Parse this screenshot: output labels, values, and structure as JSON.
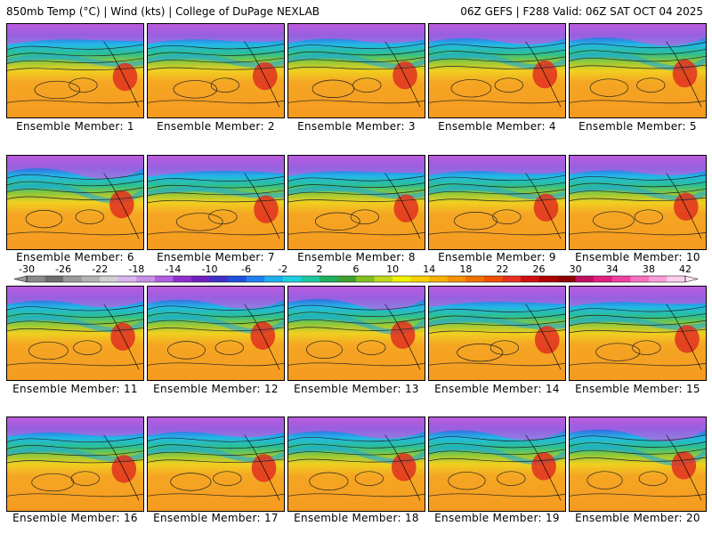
{
  "header": {
    "left": "850mb Temp (°C) | Wind (kts) | College of DuPage NEXLAB",
    "right": "06Z GEFS | F288 Valid: 06Z SAT OCT 04 2025"
  },
  "panels": [
    {
      "label": "Ensemble Member: 1"
    },
    {
      "label": "Ensemble Member: 2"
    },
    {
      "label": "Ensemble Member: 3"
    },
    {
      "label": "Ensemble Member: 4"
    },
    {
      "label": "Ensemble Member: 5"
    },
    {
      "label": "Ensemble Member: 6"
    },
    {
      "label": "Ensemble Member: 7"
    },
    {
      "label": "Ensemble Member: 8"
    },
    {
      "label": "Ensemble Member: 9"
    },
    {
      "label": "Ensemble Member: 10"
    },
    {
      "label": "Ensemble Member: 11"
    },
    {
      "label": "Ensemble Member: 12"
    },
    {
      "label": "Ensemble Member: 13"
    },
    {
      "label": "Ensemble Member: 14"
    },
    {
      "label": "Ensemble Member: 15"
    },
    {
      "label": "Ensemble Member: 16"
    },
    {
      "label": "Ensemble Member: 17"
    },
    {
      "label": "Ensemble Member: 18"
    },
    {
      "label": "Ensemble Member: 19"
    },
    {
      "label": "Ensemble Member: 20"
    }
  ],
  "colorbar": {
    "ticks": [
      "-30",
      "-26",
      "-22",
      "-18",
      "-14",
      "-10",
      "-6",
      "-2",
      "2",
      "6",
      "10",
      "14",
      "18",
      "22",
      "26",
      "30",
      "34",
      "38",
      "42"
    ],
    "colors": [
      "#8a8a8a",
      "#6e6e6e",
      "#9a9a9a",
      "#b4b4b4",
      "#d0d0d0",
      "#d8b4f0",
      "#c890e8",
      "#b060e0",
      "#9030d0",
      "#7020c0",
      "#4030c8",
      "#2050e0",
      "#2080f0",
      "#20b0f0",
      "#20d0e0",
      "#20c8a0",
      "#20b060",
      "#40a030",
      "#80c020",
      "#c0d820",
      "#f0f000",
      "#f8d000",
      "#f8b000",
      "#f89000",
      "#f07000",
      "#f05000",
      "#e83020",
      "#d01010",
      "#b00000",
      "#900000",
      "#c01060",
      "#e02080",
      "#f040a0",
      "#f870c0",
      "#f8a0d8",
      "#fcd0ec"
    ]
  }
}
